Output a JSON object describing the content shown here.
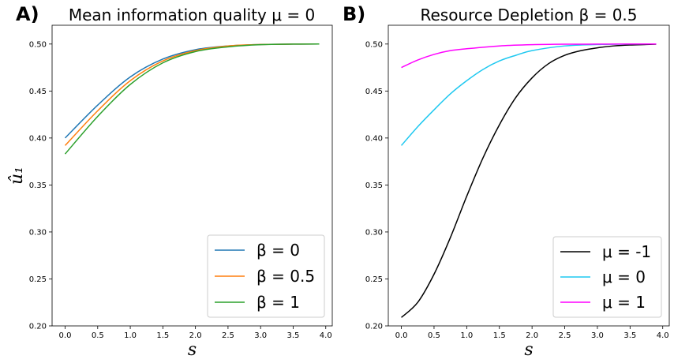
{
  "chart_data": [
    {
      "panel_label": "A)",
      "type": "line",
      "title": "Mean information quality μ = 0",
      "xlabel": "s",
      "ylabel": "û₁",
      "xlim": [
        -0.2,
        4.1
      ],
      "ylim": [
        0.2,
        0.52
      ],
      "xticks": [
        "0.0",
        "0.5",
        "1.0",
        "1.5",
        "2.0",
        "2.5",
        "3.0",
        "3.5",
        "4.0"
      ],
      "yticks": [
        "0.20",
        "0.25",
        "0.30",
        "0.35",
        "0.40",
        "0.45",
        "0.50"
      ],
      "legend_position": "lower-right",
      "grid": false,
      "series": [
        {
          "name": "β =  0",
          "color": "#1f77b4",
          "x": [
            0,
            0.5,
            1,
            1.5,
            2,
            2.5,
            3,
            3.5,
            3.9
          ],
          "y": [
            0.4,
            0.435,
            0.465,
            0.484,
            0.494,
            0.498,
            0.4995,
            0.4999,
            0.5
          ]
        },
        {
          "name": "β =  0.5",
          "color": "#ff7f0e",
          "x": [
            0,
            0.5,
            1,
            1.5,
            2,
            2.5,
            3,
            3.5,
            3.9
          ],
          "y": [
            0.392,
            0.429,
            0.461,
            0.482,
            0.493,
            0.498,
            0.4995,
            0.4999,
            0.5
          ]
        },
        {
          "name": "β =  1",
          "color": "#2ca02c",
          "x": [
            0,
            0.5,
            1,
            1.5,
            2,
            2.5,
            3,
            3.5,
            3.9
          ],
          "y": [
            0.383,
            0.423,
            0.457,
            0.48,
            0.492,
            0.497,
            0.4993,
            0.4999,
            0.5
          ]
        }
      ]
    },
    {
      "panel_label": "B)",
      "type": "line",
      "title": "Resource Depletion β = 0.5",
      "xlabel": "s",
      "ylabel": "",
      "xlim": [
        -0.2,
        4.1
      ],
      "ylim": [
        0.2,
        0.52
      ],
      "xticks": [
        "0.0",
        "0.5",
        "1.0",
        "1.5",
        "2.0",
        "2.5",
        "3.0",
        "3.5",
        "4.0"
      ],
      "yticks": [
        "0.20",
        "0.25",
        "0.30",
        "0.35",
        "0.40",
        "0.45",
        "0.50"
      ],
      "legend_position": "lower-right",
      "grid": false,
      "series": [
        {
          "name": "μ =  -1",
          "color": "#000000",
          "x": [
            0,
            0.25,
            0.5,
            0.75,
            1,
            1.25,
            1.5,
            1.75,
            2,
            2.25,
            2.5,
            2.75,
            3,
            3.25,
            3.5,
            3.75,
            3.9
          ],
          "y": [
            0.209,
            0.225,
            0.255,
            0.294,
            0.338,
            0.379,
            0.414,
            0.443,
            0.464,
            0.479,
            0.488,
            0.493,
            0.496,
            0.498,
            0.499,
            0.4995,
            0.4998
          ]
        },
        {
          "name": "μ =  0",
          "color": "#1ec8f0",
          "x": [
            0,
            0.25,
            0.5,
            0.75,
            1,
            1.25,
            1.5,
            1.75,
            2,
            2.5,
            3,
            3.5,
            3.9
          ],
          "y": [
            0.392,
            0.412,
            0.43,
            0.447,
            0.461,
            0.473,
            0.482,
            0.488,
            0.493,
            0.498,
            0.4995,
            0.4999,
            0.5
          ]
        },
        {
          "name": "μ =  1",
          "color": "#ff00ff",
          "x": [
            0,
            0.25,
            0.5,
            0.75,
            1,
            1.5,
            2,
            2.5,
            3,
            3.5,
            3.9
          ],
          "y": [
            0.475,
            0.483,
            0.489,
            0.493,
            0.495,
            0.498,
            0.4993,
            0.4998,
            0.4999,
            0.5,
            0.5
          ]
        }
      ]
    }
  ]
}
